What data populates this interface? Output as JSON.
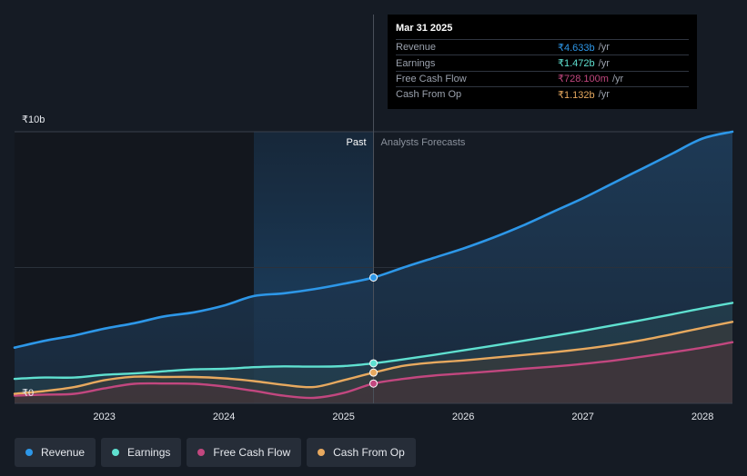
{
  "chart_data": {
    "type": "area",
    "y_axis": {
      "top_label": "₹10b",
      "bottom_label": "₹0",
      "ylim": [
        0,
        10
      ]
    },
    "x_ticks": [
      "2023",
      "2024",
      "2025",
      "2026",
      "2027",
      "2028"
    ],
    "x_tick_values": [
      2023,
      2024,
      2025,
      2026,
      2027,
      2028
    ],
    "xlim": [
      2022.25,
      2028.25
    ],
    "forecast_start": 2025.25,
    "highlight_start": 2024.25,
    "period_labels": {
      "past": "Past",
      "forecast": "Analysts Forecasts"
    },
    "units": "₹ billions",
    "series": [
      {
        "name": "Revenue",
        "color": "#2d97e8",
        "points": [
          [
            2022.25,
            2.05
          ],
          [
            2022.5,
            2.3
          ],
          [
            2022.75,
            2.5
          ],
          [
            2023,
            2.75
          ],
          [
            2023.25,
            2.95
          ],
          [
            2023.5,
            3.2
          ],
          [
            2023.75,
            3.35
          ],
          [
            2024,
            3.6
          ],
          [
            2024.25,
            3.95
          ],
          [
            2024.5,
            4.05
          ],
          [
            2024.75,
            4.2
          ],
          [
            2025,
            4.4
          ],
          [
            2025.25,
            4.633
          ],
          [
            2025.5,
            5.0
          ],
          [
            2025.75,
            5.35
          ],
          [
            2026,
            5.7
          ],
          [
            2026.25,
            6.1
          ],
          [
            2026.5,
            6.55
          ],
          [
            2026.75,
            7.05
          ],
          [
            2027,
            7.55
          ],
          [
            2027.25,
            8.1
          ],
          [
            2027.5,
            8.65
          ],
          [
            2027.75,
            9.2
          ],
          [
            2028,
            9.75
          ],
          [
            2028.25,
            10.0
          ]
        ]
      },
      {
        "name": "Earnings",
        "color": "#5fe0d0",
        "points": [
          [
            2022.25,
            0.9
          ],
          [
            2022.5,
            0.95
          ],
          [
            2022.75,
            0.95
          ],
          [
            2023,
            1.05
          ],
          [
            2023.25,
            1.1
          ],
          [
            2023.5,
            1.18
          ],
          [
            2023.75,
            1.25
          ],
          [
            2024,
            1.27
          ],
          [
            2024.25,
            1.33
          ],
          [
            2024.5,
            1.36
          ],
          [
            2024.75,
            1.35
          ],
          [
            2025,
            1.37
          ],
          [
            2025.25,
            1.472
          ],
          [
            2025.5,
            1.62
          ],
          [
            2025.75,
            1.78
          ],
          [
            2026,
            1.95
          ],
          [
            2026.25,
            2.12
          ],
          [
            2026.5,
            2.3
          ],
          [
            2026.75,
            2.48
          ],
          [
            2027,
            2.67
          ],
          [
            2027.25,
            2.87
          ],
          [
            2027.5,
            3.07
          ],
          [
            2027.75,
            3.28
          ],
          [
            2028,
            3.5
          ],
          [
            2028.25,
            3.7
          ]
        ]
      },
      {
        "name": "Free Cash Flow",
        "color": "#c2477f",
        "points": [
          [
            2022.25,
            0.28
          ],
          [
            2022.5,
            0.32
          ],
          [
            2022.75,
            0.35
          ],
          [
            2023,
            0.55
          ],
          [
            2023.25,
            0.72
          ],
          [
            2023.5,
            0.73
          ],
          [
            2023.75,
            0.72
          ],
          [
            2024,
            0.62
          ],
          [
            2024.25,
            0.46
          ],
          [
            2024.5,
            0.28
          ],
          [
            2024.75,
            0.2
          ],
          [
            2025,
            0.38
          ],
          [
            2025.25,
            0.728
          ],
          [
            2025.5,
            0.9
          ],
          [
            2025.75,
            1.02
          ],
          [
            2026,
            1.1
          ],
          [
            2026.25,
            1.18
          ],
          [
            2026.5,
            1.27
          ],
          [
            2026.75,
            1.35
          ],
          [
            2027,
            1.45
          ],
          [
            2027.25,
            1.57
          ],
          [
            2027.5,
            1.72
          ],
          [
            2027.75,
            1.88
          ],
          [
            2028,
            2.05
          ],
          [
            2028.25,
            2.25
          ]
        ]
      },
      {
        "name": "Cash From Op",
        "color": "#e7a95f",
        "points": [
          [
            2022.25,
            0.35
          ],
          [
            2022.5,
            0.45
          ],
          [
            2022.75,
            0.6
          ],
          [
            2023,
            0.85
          ],
          [
            2023.25,
            0.98
          ],
          [
            2023.5,
            0.97
          ],
          [
            2023.75,
            0.97
          ],
          [
            2024,
            0.92
          ],
          [
            2024.25,
            0.82
          ],
          [
            2024.5,
            0.68
          ],
          [
            2024.75,
            0.6
          ],
          [
            2025,
            0.85
          ],
          [
            2025.25,
            1.132
          ],
          [
            2025.5,
            1.38
          ],
          [
            2025.75,
            1.5
          ],
          [
            2026,
            1.58
          ],
          [
            2026.25,
            1.68
          ],
          [
            2026.5,
            1.78
          ],
          [
            2026.75,
            1.88
          ],
          [
            2027,
            2.0
          ],
          [
            2027.25,
            2.15
          ],
          [
            2027.5,
            2.33
          ],
          [
            2027.75,
            2.55
          ],
          [
            2028,
            2.78
          ],
          [
            2028.25,
            3.0
          ]
        ]
      }
    ]
  },
  "tooltip": {
    "date": "Mar 31 2025",
    "rows": [
      {
        "label": "Revenue",
        "value": "₹4.633b",
        "unit": "/yr",
        "color": "#2d97e8"
      },
      {
        "label": "Earnings",
        "value": "₹1.472b",
        "unit": "/yr",
        "color": "#5fe0d0"
      },
      {
        "label": "Free Cash Flow",
        "value": "₹728.100m",
        "unit": "/yr",
        "color": "#c2477f"
      },
      {
        "label": "Cash From Op",
        "value": "₹1.132b",
        "unit": "/yr",
        "color": "#e7a95f"
      }
    ]
  },
  "legend": [
    {
      "label": "Revenue",
      "color": "#2d97e8"
    },
    {
      "label": "Earnings",
      "color": "#5fe0d0"
    },
    {
      "label": "Free Cash Flow",
      "color": "#c2477f"
    },
    {
      "label": "Cash From Op",
      "color": "#e7a95f"
    }
  ]
}
